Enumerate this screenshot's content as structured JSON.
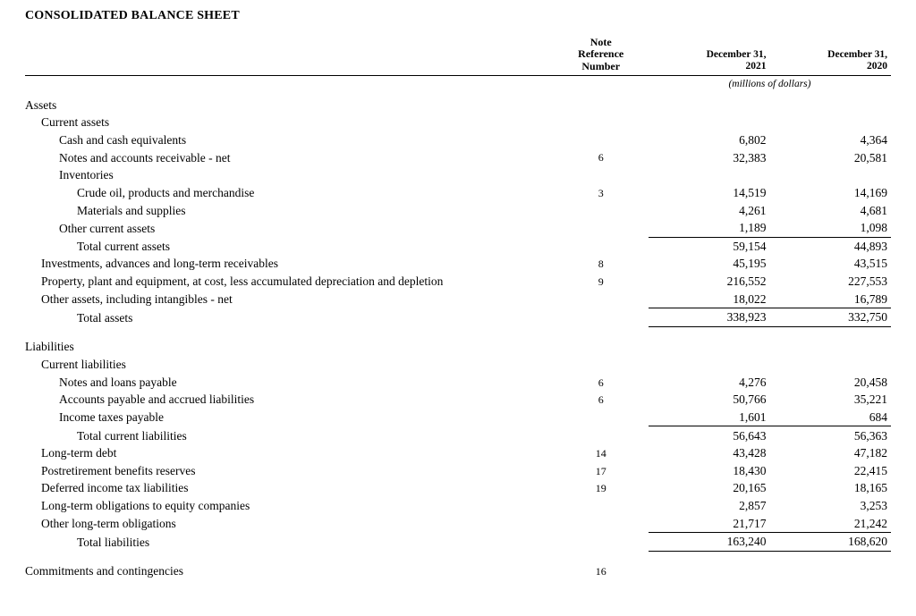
{
  "title": "CONSOLIDATED BALANCE SHEET",
  "headers": {
    "note": "Note\nReference\nNumber",
    "col2021": "December 31,\n2021",
    "col2020": "December 31,\n2020"
  },
  "units_label": "(millions of dollars)",
  "sections": [
    {
      "heading": "Assets",
      "groups": [
        {
          "subheading": "Current assets",
          "rows": [
            {
              "label": "Cash and cash equivalents",
              "indent": 2,
              "note": "",
              "v2021": "6,802",
              "v2020": "4,364"
            },
            {
              "label": "Notes and accounts receivable - net",
              "indent": 2,
              "note": "6",
              "v2021": "32,383",
              "v2020": "20,581"
            },
            {
              "label": "Inventories",
              "indent": 2,
              "note": "",
              "v2021": "",
              "v2020": ""
            },
            {
              "label": "Crude oil, products and merchandise",
              "indent": 3,
              "note": "3",
              "v2021": "14,519",
              "v2020": "14,169"
            },
            {
              "label": "Materials and supplies",
              "indent": 3,
              "note": "",
              "v2021": "4,261",
              "v2020": "4,681"
            },
            {
              "label": "Other current assets",
              "indent": 2,
              "note": "",
              "v2021": "1,189",
              "v2020": "1,098"
            },
            {
              "label": "Total current assets",
              "indent": 3,
              "note": "",
              "v2021": "59,154",
              "v2020": "44,893",
              "subtotal": true
            }
          ]
        },
        {
          "rows": [
            {
              "label": "Investments, advances and long-term receivables",
              "indent": 1,
              "note": "8",
              "v2021": "45,195",
              "v2020": "43,515"
            },
            {
              "label": "Property, plant and equipment, at cost, less accumulated depreciation and depletion",
              "indent": 1,
              "note": "9",
              "v2021": "216,552",
              "v2020": "227,553"
            },
            {
              "label": "Other assets, including intangibles - net",
              "indent": 1,
              "note": "",
              "v2021": "18,022",
              "v2020": "16,789"
            },
            {
              "label": "Total assets",
              "indent": 3,
              "note": "",
              "v2021": "338,923",
              "v2020": "332,750",
              "grandtotal": true
            }
          ]
        }
      ]
    },
    {
      "heading": "Liabilities",
      "groups": [
        {
          "subheading": "Current liabilities",
          "rows": [
            {
              "label": "Notes and loans payable",
              "indent": 2,
              "note": "6",
              "v2021": "4,276",
              "v2020": "20,458"
            },
            {
              "label": "Accounts payable and accrued liabilities",
              "indent": 2,
              "note": "6",
              "v2021": "50,766",
              "v2020": "35,221"
            },
            {
              "label": "Income taxes payable",
              "indent": 2,
              "note": "",
              "v2021": "1,601",
              "v2020": "684"
            },
            {
              "label": "Total current liabilities",
              "indent": 3,
              "note": "",
              "v2021": "56,643",
              "v2020": "56,363",
              "subtotal": true
            }
          ]
        },
        {
          "rows": [
            {
              "label": "Long-term debt",
              "indent": 1,
              "note": "14",
              "v2021": "43,428",
              "v2020": "47,182"
            },
            {
              "label": "Postretirement benefits reserves",
              "indent": 1,
              "note": "17",
              "v2021": "18,430",
              "v2020": "22,415"
            },
            {
              "label": "Deferred income tax liabilities",
              "indent": 1,
              "note": "19",
              "v2021": "20,165",
              "v2020": "18,165"
            },
            {
              "label": "Long-term obligations to equity companies",
              "indent": 1,
              "note": "",
              "v2021": "2,857",
              "v2020": "3,253"
            },
            {
              "label": "Other long-term obligations",
              "indent": 1,
              "note": "",
              "v2021": "21,717",
              "v2020": "21,242"
            },
            {
              "label": "Total liabilities",
              "indent": 3,
              "note": "",
              "v2021": "163,240",
              "v2020": "168,620",
              "grandtotal": true
            }
          ]
        }
      ]
    },
    {
      "heading": "",
      "groups": [
        {
          "rows": [
            {
              "label": "Commitments and contingencies",
              "indent": 0,
              "note": "16",
              "v2021": "",
              "v2020": ""
            }
          ]
        }
      ]
    }
  ]
}
